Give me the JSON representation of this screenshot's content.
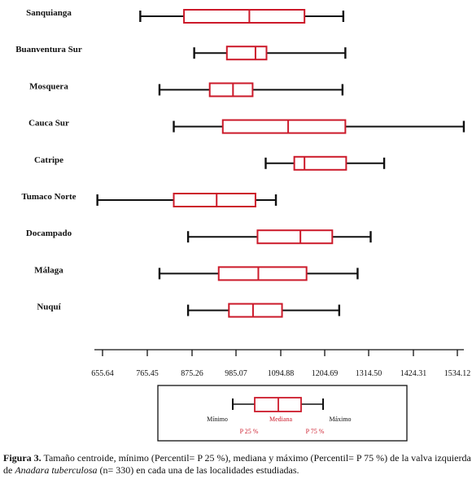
{
  "chart_data": {
    "type": "boxplot",
    "orientation": "horizontal",
    "x_ticks": [
      655.64,
      765.45,
      875.26,
      985.07,
      1094.88,
      1204.69,
      1314.5,
      1424.31,
      1534.12
    ],
    "x_tick_labels": [
      "655.64",
      "765.45",
      "875.26",
      "985.07",
      "1094.88",
      "1204.69",
      "1314.50",
      "1424.31",
      "1534.12"
    ],
    "xlim": [
      655.64,
      1534.12
    ],
    "categories": [
      "Sanquianga",
      "Buanventura Sur",
      "Mosquera",
      "Cauca Sur",
      "Catripe",
      "Tumaco Norte",
      "Docampado",
      "Málaga",
      "Nuquí"
    ],
    "boxes": [
      {
        "min": 748,
        "p25": 855,
        "median": 1015,
        "p75": 1150,
        "max": 1245
      },
      {
        "min": 880,
        "p25": 960,
        "median": 1030,
        "p75": 1057,
        "max": 1250
      },
      {
        "min": 795,
        "p25": 918,
        "median": 975,
        "p75": 1023,
        "max": 1243
      },
      {
        "min": 830,
        "p25": 950,
        "median": 1110,
        "p75": 1250,
        "max": 1540
      },
      {
        "min": 1055,
        "p25": 1125,
        "median": 1150,
        "p75": 1252,
        "max": 1345
      },
      {
        "min": 643,
        "p25": 830,
        "median": 935,
        "p75": 1030,
        "max": 1080
      },
      {
        "min": 865,
        "p25": 1035,
        "median": 1140,
        "p75": 1218,
        "max": 1312
      },
      {
        "min": 795,
        "p25": 940,
        "median": 1037,
        "p75": 1155,
        "max": 1280
      },
      {
        "min": 865,
        "p25": 965,
        "median": 1024,
        "p75": 1095,
        "max": 1235
      }
    ],
    "colors": {
      "whisker": "#111111",
      "box": "#cc1a2a"
    }
  },
  "legend": {
    "min_label": "Mínimo",
    "median_label": "Mediana",
    "max_label": "Máximo",
    "p25_label": "P 25 %",
    "p75_label": "P 75 %"
  },
  "caption": {
    "figure_label": "Figura 3.",
    "text_1": " Tamaño centroide, mínimo (Percentil= P 25 %), mediana y máximo (Percentil= P 75 %) de la valva izquierda de ",
    "species": "Anadara tuberculosa",
    "text_2": " (n= 330) en cada una de las localidades estudiadas."
  }
}
